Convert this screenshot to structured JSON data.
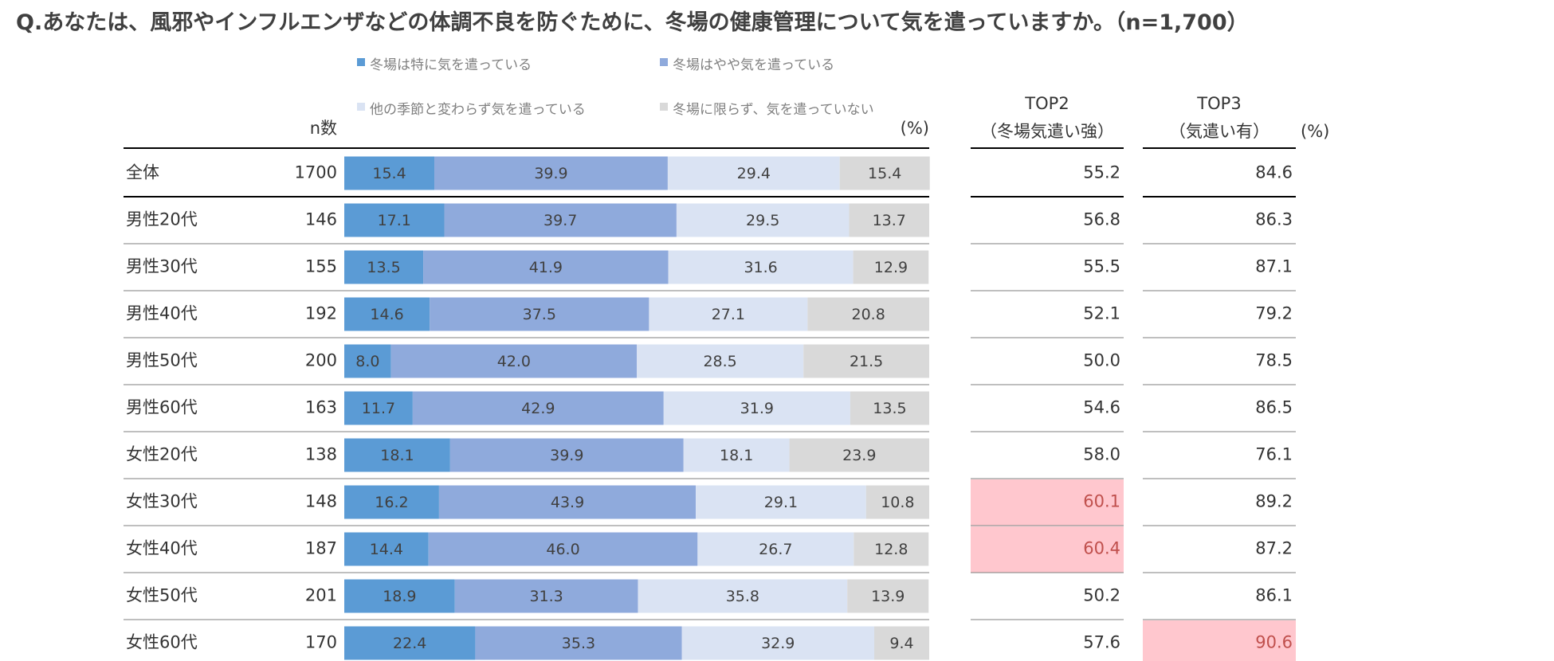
{
  "title": "Q.あなたは、風邪やインフルエンザなどの体調不良を防ぐために、冬場の健康管理について気を遣っていますか。（n=1,700）",
  "colors": {
    "cat1": "#5b9bd5",
    "cat2": "#8faadc",
    "cat3": "#dae3f3",
    "cat4": "#d9d9d9",
    "highlight": "#ffc7ce",
    "highlight_text": "#c0504d"
  },
  "chart_data": {
    "type": "bar",
    "stacked": true,
    "orientation": "horizontal",
    "percent_axis_label": "(%)",
    "n_header": "n数",
    "legend": [
      "冬場は特に気を遣っている",
      "冬場はやや気を遣っている",
      "他の季節と変わらず気を遣っている",
      "冬場に限らず、気を遣っていない"
    ],
    "categories": [
      "全体",
      "男性20代",
      "男性30代",
      "男性40代",
      "男性50代",
      "男性60代",
      "女性20代",
      "女性30代",
      "女性40代",
      "女性50代",
      "女性60代"
    ],
    "n": [
      1700,
      146,
      155,
      192,
      200,
      163,
      138,
      148,
      187,
      201,
      170
    ],
    "series": [
      {
        "name": "冬場は特に気を遣っている",
        "values": [
          15.4,
          17.1,
          13.5,
          14.6,
          8.0,
          11.7,
          18.1,
          16.2,
          14.4,
          18.9,
          22.4
        ]
      },
      {
        "name": "冬場はやや気を遣っている",
        "values": [
          39.9,
          39.7,
          41.9,
          37.5,
          42.0,
          42.9,
          39.9,
          43.9,
          46.0,
          31.3,
          35.3
        ]
      },
      {
        "name": "他の季節と変わらず気を遣っている",
        "values": [
          29.4,
          29.5,
          31.6,
          27.1,
          28.5,
          31.9,
          18.1,
          29.1,
          26.7,
          35.8,
          32.9
        ]
      },
      {
        "name": "冬場に限らず、気を遣っていない",
        "values": [
          15.4,
          13.7,
          12.9,
          20.8,
          21.5,
          13.5,
          23.9,
          10.8,
          12.8,
          13.9,
          9.4
        ]
      }
    ],
    "summary_tables": [
      {
        "header1": "TOP2",
        "header2": "（冬場気遣い強）",
        "values": [
          55.2,
          56.8,
          55.5,
          52.1,
          50.0,
          54.6,
          58.0,
          60.1,
          60.4,
          50.2,
          57.6
        ],
        "highlight": [
          false,
          false,
          false,
          false,
          false,
          false,
          false,
          true,
          true,
          false,
          false
        ]
      },
      {
        "header1": "TOP3",
        "header2": "（気遣い有）",
        "values": [
          84.6,
          86.3,
          87.1,
          79.2,
          78.5,
          86.5,
          76.1,
          89.2,
          87.2,
          86.1,
          90.6
        ],
        "highlight": [
          false,
          false,
          false,
          false,
          false,
          false,
          false,
          false,
          false,
          false,
          true
        ]
      }
    ],
    "summary_unit": "(%)",
    "xlim": [
      0,
      100
    ]
  }
}
